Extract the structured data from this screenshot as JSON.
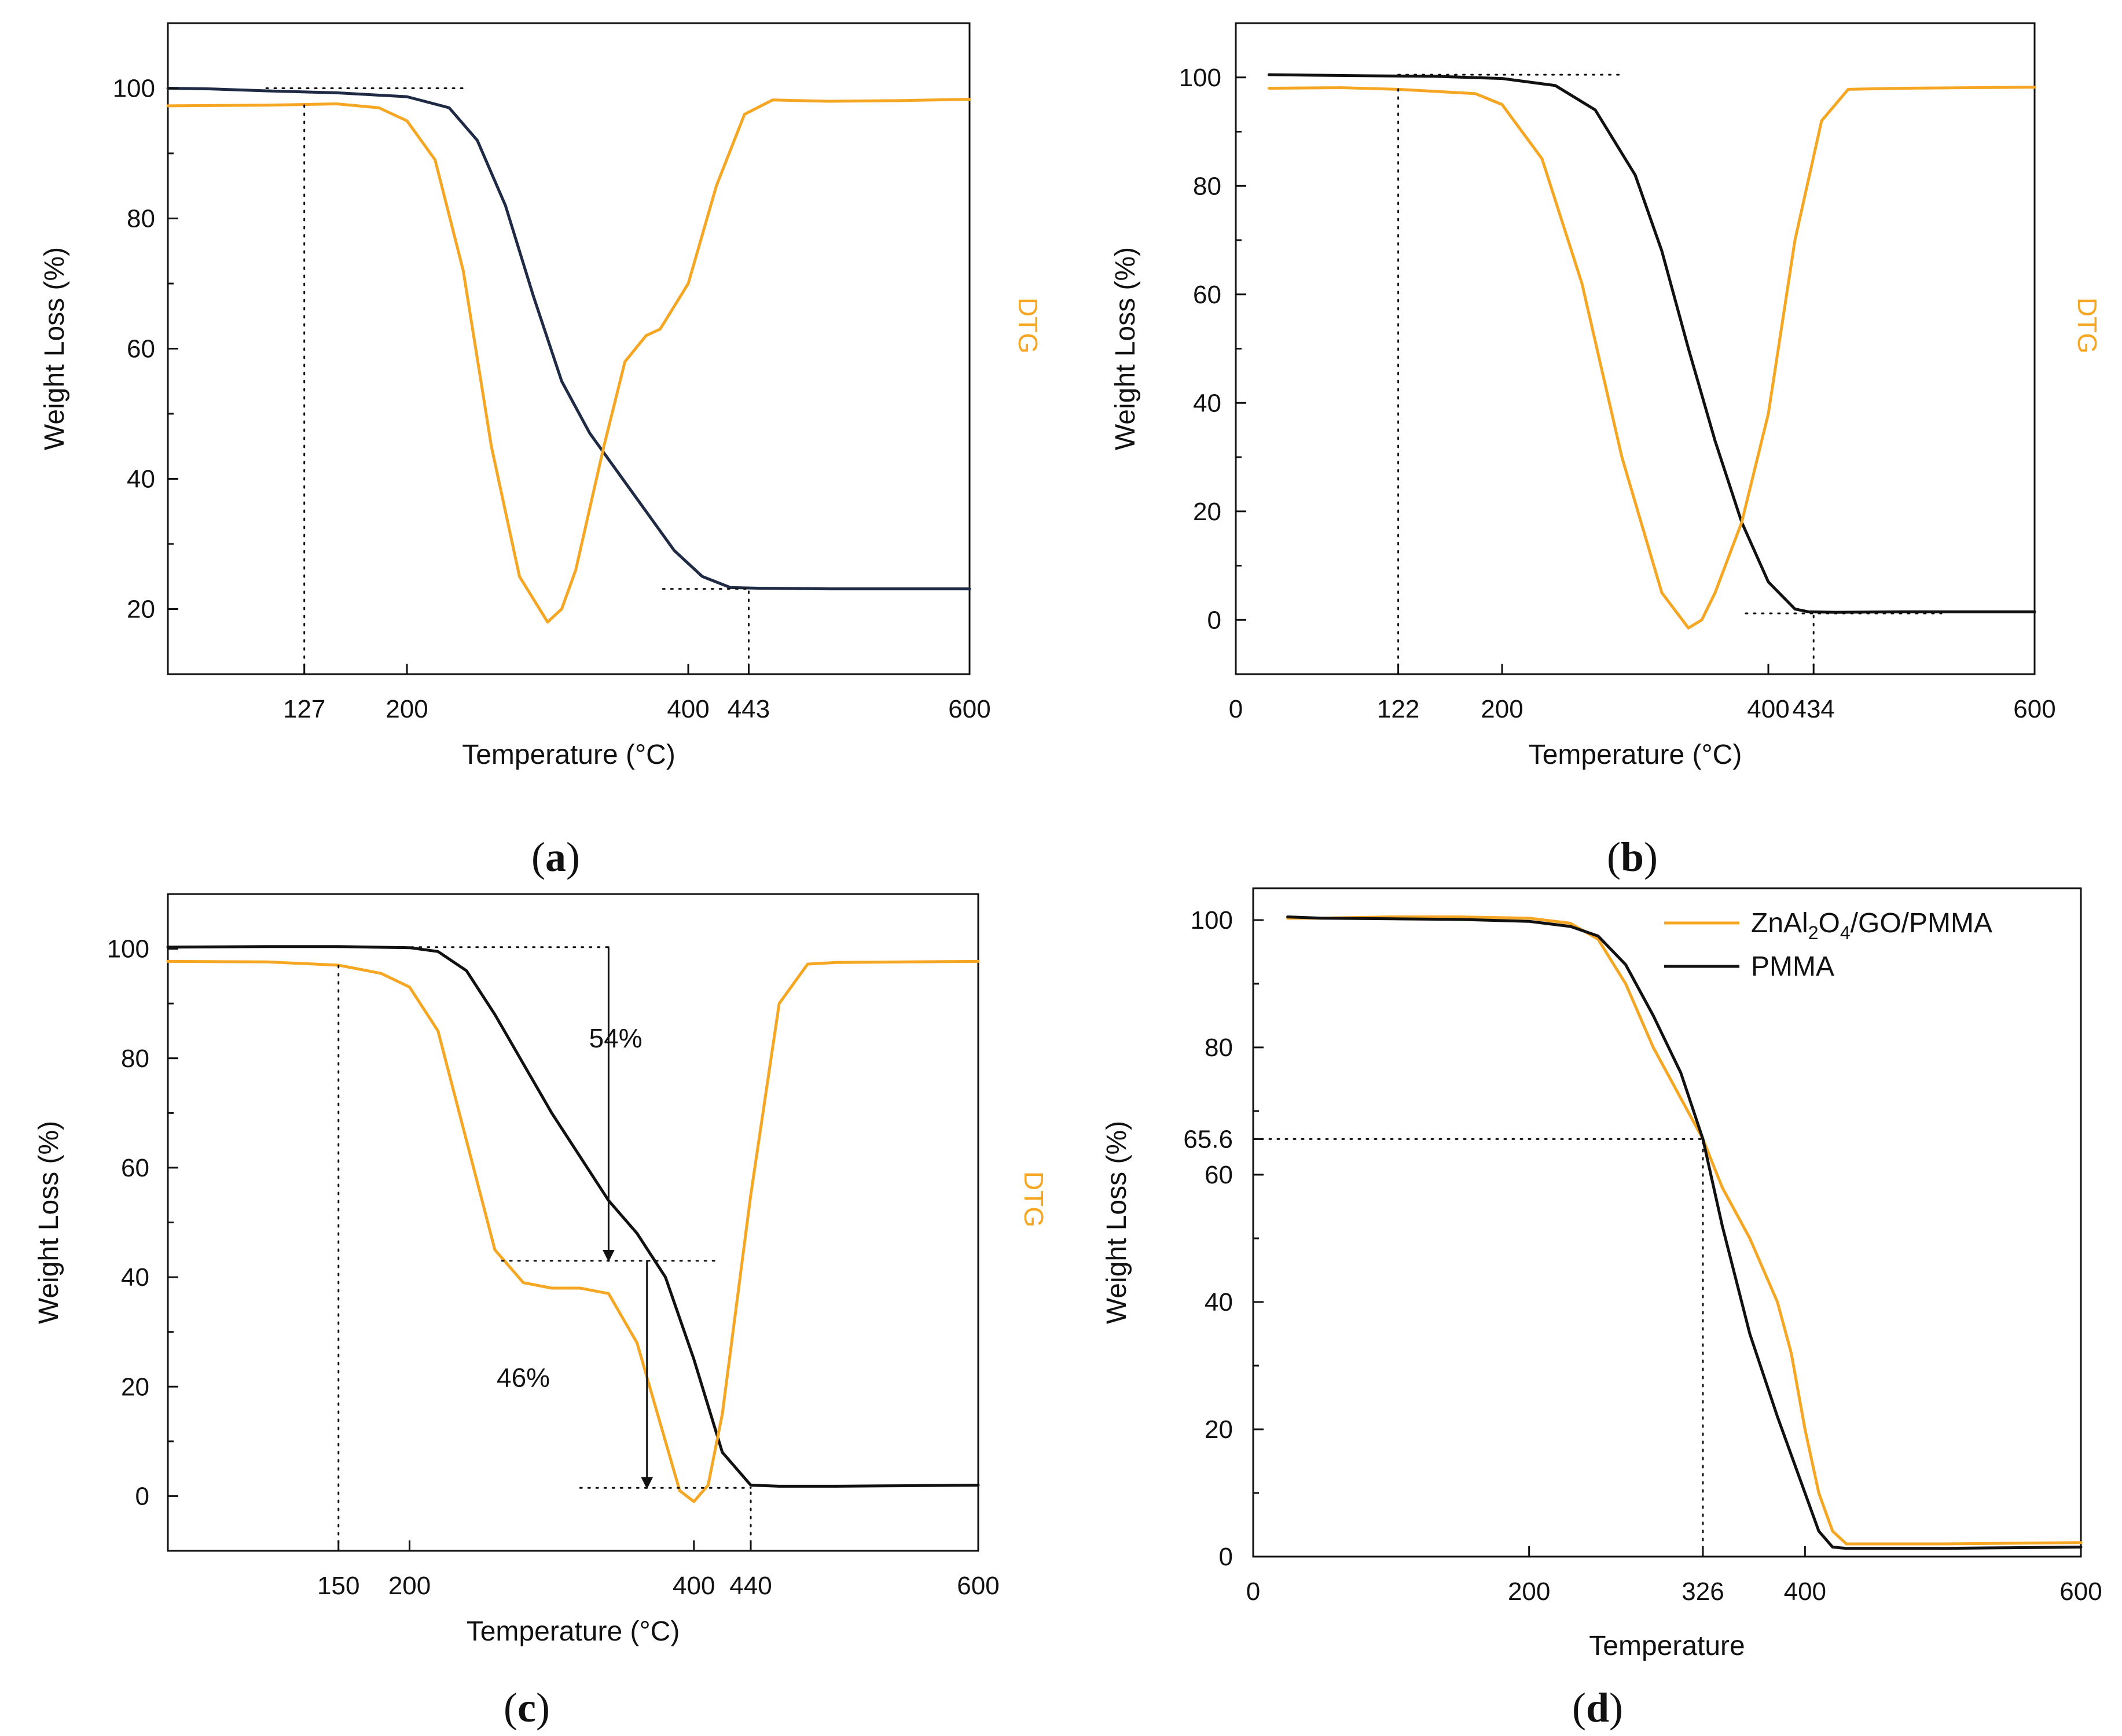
{
  "colors": {
    "black": "#111111",
    "orange": "#F5A623",
    "navy": "#1f2a44"
  },
  "chart_data": [
    {
      "type": "line",
      "caption": {
        "open": "(",
        "letter": "a",
        "close": ")"
      },
      "xlabel": "Temperature (°C)",
      "ylabel": "Weight Loss (%)",
      "y2label": "DTG",
      "xlim": [
        30,
        600
      ],
      "ylim": [
        10,
        110
      ],
      "xticks": [
        127,
        200,
        400,
        443,
        600
      ],
      "yticks": [
        20,
        40,
        60,
        80,
        100
      ],
      "series": [
        {
          "name": "TGA",
          "color": "#1f2a44",
          "x": [
            30,
            60,
            100,
            150,
            200,
            230,
            250,
            270,
            290,
            310,
            330,
            350,
            370,
            390,
            410,
            430,
            450,
            500,
            550,
            600
          ],
          "y": [
            100,
            99.9,
            99.6,
            99.3,
            98.7,
            97,
            92,
            82,
            68,
            55,
            47,
            41,
            35,
            29,
            25,
            23.3,
            23.2,
            23.1,
            23.1,
            23.1
          ]
        },
        {
          "name": "DTG",
          "color": "#F5A623",
          "x": [
            30,
            100,
            150,
            180,
            200,
            220,
            240,
            260,
            280,
            300,
            310,
            320,
            340,
            355,
            370,
            380,
            400,
            420,
            440,
            460,
            500,
            550,
            600
          ],
          "y": [
            97.3,
            97.4,
            97.6,
            97,
            95,
            89,
            72,
            45,
            25,
            18,
            20,
            26,
            45,
            58,
            62,
            63,
            70,
            85,
            96,
            98.2,
            98,
            98.1,
            98.3
          ]
        },
        {
          "name": "guide",
          "color": "#111111",
          "x": [
            100,
            243
          ],
          "y": [
            100,
            100
          ]
        },
        {
          "name": "guide",
          "color": "#111111",
          "x": [
            127,
            127
          ],
          "y": [
            10,
            98
          ]
        },
        {
          "name": "guide",
          "color": "#111111",
          "x": [
            382,
            443
          ],
          "y": [
            23.1,
            23.1
          ]
        },
        {
          "name": "guide",
          "color": "#111111",
          "x": [
            443,
            443
          ],
          "y": [
            10,
            23.1
          ]
        }
      ]
    },
    {
      "type": "line",
      "caption": {
        "open": "(",
        "letter": "b",
        "close": ")"
      },
      "xlabel": "Temperature (°C)",
      "ylabel": "Weight Loss (%)",
      "y2label": "DTG",
      "xlim": [
        0,
        600
      ],
      "ylim": [
        -10,
        110
      ],
      "xticks": [
        0,
        122,
        200,
        400,
        434,
        600
      ],
      "yticks": [
        0,
        20,
        40,
        60,
        80,
        100
      ],
      "series": [
        {
          "name": "TGA",
          "color": "#111111",
          "x": [
            25,
            60,
            100,
            150,
            200,
            240,
            270,
            300,
            320,
            340,
            360,
            380,
            400,
            420,
            430,
            450,
            500,
            550,
            600
          ],
          "y": [
            100.5,
            100.4,
            100.3,
            100.2,
            99.8,
            98.5,
            94,
            82,
            68,
            50,
            33,
            18,
            7,
            2,
            1.5,
            1.4,
            1.5,
            1.5,
            1.5
          ]
        },
        {
          "name": "DTG",
          "color": "#F5A623",
          "x": [
            25,
            80,
            122,
            180,
            200,
            230,
            260,
            290,
            320,
            340,
            350,
            360,
            380,
            400,
            420,
            440,
            460,
            500,
            550,
            600
          ],
          "y": [
            98,
            98.1,
            97.8,
            97,
            95,
            85,
            62,
            30,
            5,
            -1.5,
            0,
            5,
            18,
            38,
            70,
            92,
            97.8,
            98,
            98.1,
            98.2
          ]
        },
        {
          "name": "guide",
          "color": "#111111",
          "x": [
            122,
            290
          ],
          "y": [
            100.5,
            100.5
          ]
        },
        {
          "name": "guide",
          "color": "#111111",
          "x": [
            122,
            122
          ],
          "y": [
            -10,
            98
          ]
        },
        {
          "name": "guide",
          "color": "#111111",
          "x": [
            383,
            530
          ],
          "y": [
            1.2,
            1.2
          ]
        },
        {
          "name": "guide",
          "color": "#111111",
          "x": [
            434,
            434
          ],
          "y": [
            -10,
            1.2
          ]
        }
      ]
    },
    {
      "type": "line",
      "caption": {
        "open": "(",
        "letter": "c",
        "close": ")"
      },
      "xlabel": "Temperature (°C)",
      "ylabel": "Weight Loss (%)",
      "y2label": "DTG",
      "xlim": [
        30,
        600
      ],
      "ylim": [
        -10,
        110
      ],
      "xticks": [
        150,
        200,
        400,
        440,
        600
      ],
      "yticks": [
        0,
        20,
        40,
        60,
        80,
        100
      ],
      "annotations": [
        {
          "text": "54%",
          "x": 345,
          "y": 82
        },
        {
          "text": "46%",
          "x": 280,
          "y": 20
        }
      ],
      "series": [
        {
          "name": "TGA",
          "color": "#111111",
          "x": [
            30,
            100,
            150,
            200,
            220,
            240,
            260,
            280,
            300,
            320,
            340,
            360,
            380,
            400,
            420,
            440,
            460,
            500,
            550,
            600
          ],
          "y": [
            100.3,
            100.4,
            100.4,
            100.2,
            99.5,
            96,
            88,
            79,
            70,
            62,
            54,
            48,
            40,
            25,
            8,
            2,
            1.8,
            1.8,
            1.9,
            2
          ]
        },
        {
          "name": "DTG",
          "color": "#F5A623",
          "x": [
            30,
            100,
            150,
            180,
            200,
            220,
            240,
            260,
            280,
            300,
            320,
            340,
            360,
            380,
            390,
            400,
            410,
            420,
            440,
            460,
            480,
            500,
            550,
            600
          ],
          "y": [
            97.7,
            97.6,
            97,
            95.5,
            93,
            85,
            65,
            45,
            39,
            38,
            38,
            37,
            28,
            10,
            1,
            -1,
            2,
            15,
            55,
            90,
            97.2,
            97.5,
            97.6,
            97.7
          ]
        },
        {
          "name": "guide",
          "color": "#111111",
          "x": [
            150,
            340
          ],
          "y": [
            100.3,
            100.3
          ]
        },
        {
          "name": "guide",
          "color": "#111111",
          "x": [
            150,
            150
          ],
          "y": [
            -10,
            97.5
          ]
        },
        {
          "name": "guide",
          "color": "#111111",
          "x": [
            265,
            415
          ],
          "y": [
            43,
            43
          ]
        },
        {
          "name": "guide",
          "color": "#111111",
          "x": [
            320,
            440
          ],
          "y": [
            1.5,
            1.5
          ]
        },
        {
          "name": "guide",
          "color": "#111111",
          "x": [
            440,
            440
          ],
          "y": [
            -10,
            1.5
          ]
        },
        {
          "name": "arrow",
          "color": "#111111",
          "x": [
            340,
            340
          ],
          "y": [
            100.3,
            43
          ]
        },
        {
          "name": "arrow",
          "color": "#111111",
          "x": [
            367,
            367
          ],
          "y": [
            43,
            1.5
          ]
        }
      ]
    },
    {
      "type": "line",
      "caption": {
        "open": "(",
        "letter": "d",
        "close": ")"
      },
      "xlabel": "Temperature",
      "ylabel": "Weight Loss (%)",
      "xlim": [
        0,
        600
      ],
      "ylim": [
        0,
        105
      ],
      "xticks": [
        0,
        200,
        326,
        400,
        600
      ],
      "yticks": [
        0,
        20,
        40,
        60,
        65.6,
        80,
        100
      ],
      "legend": {
        "position": "top-right",
        "entries": [
          {
            "base": "ZnAl",
            "sub1": "2",
            "mid": "O",
            "sub2": "4",
            "tail": "/GO/PMMA",
            "color": "#F5A623"
          },
          {
            "base": "PMMA",
            "sub1": "",
            "mid": "",
            "sub2": "",
            "tail": "",
            "color": "#111111"
          }
        ]
      },
      "series": [
        {
          "name": "ZnAl2O4/GO/PMMA",
          "color": "#F5A623",
          "x": [
            25,
            50,
            100,
            150,
            200,
            230,
            250,
            270,
            290,
            310,
            326,
            340,
            360,
            380,
            390,
            400,
            410,
            420,
            430,
            450,
            500,
            550,
            600
          ],
          "y": [
            100.3,
            100.3,
            100.5,
            100.5,
            100.3,
            99.5,
            97,
            90,
            80,
            72,
            65.6,
            58,
            50,
            40,
            32,
            20,
            10,
            4,
            2,
            2,
            2,
            2.1,
            2.2
          ]
        },
        {
          "name": "PMMA",
          "color": "#111111",
          "x": [
            25,
            50,
            100,
            150,
            200,
            230,
            250,
            270,
            290,
            310,
            326,
            340,
            360,
            380,
            400,
            410,
            420,
            430,
            450,
            500,
            550,
            600
          ],
          "y": [
            100.5,
            100.3,
            100.2,
            100.1,
            99.8,
            99,
            97.5,
            93,
            85,
            76,
            65.6,
            52,
            35,
            22,
            10,
            4,
            1.5,
            1.3,
            1.3,
            1.3,
            1.4,
            1.5
          ]
        },
        {
          "name": "guide",
          "color": "#111111",
          "x": [
            0,
            326
          ],
          "y": [
            65.6,
            65.6
          ]
        },
        {
          "name": "guide",
          "color": "#111111",
          "x": [
            326,
            326
          ],
          "y": [
            0,
            65.6
          ]
        }
      ]
    }
  ]
}
